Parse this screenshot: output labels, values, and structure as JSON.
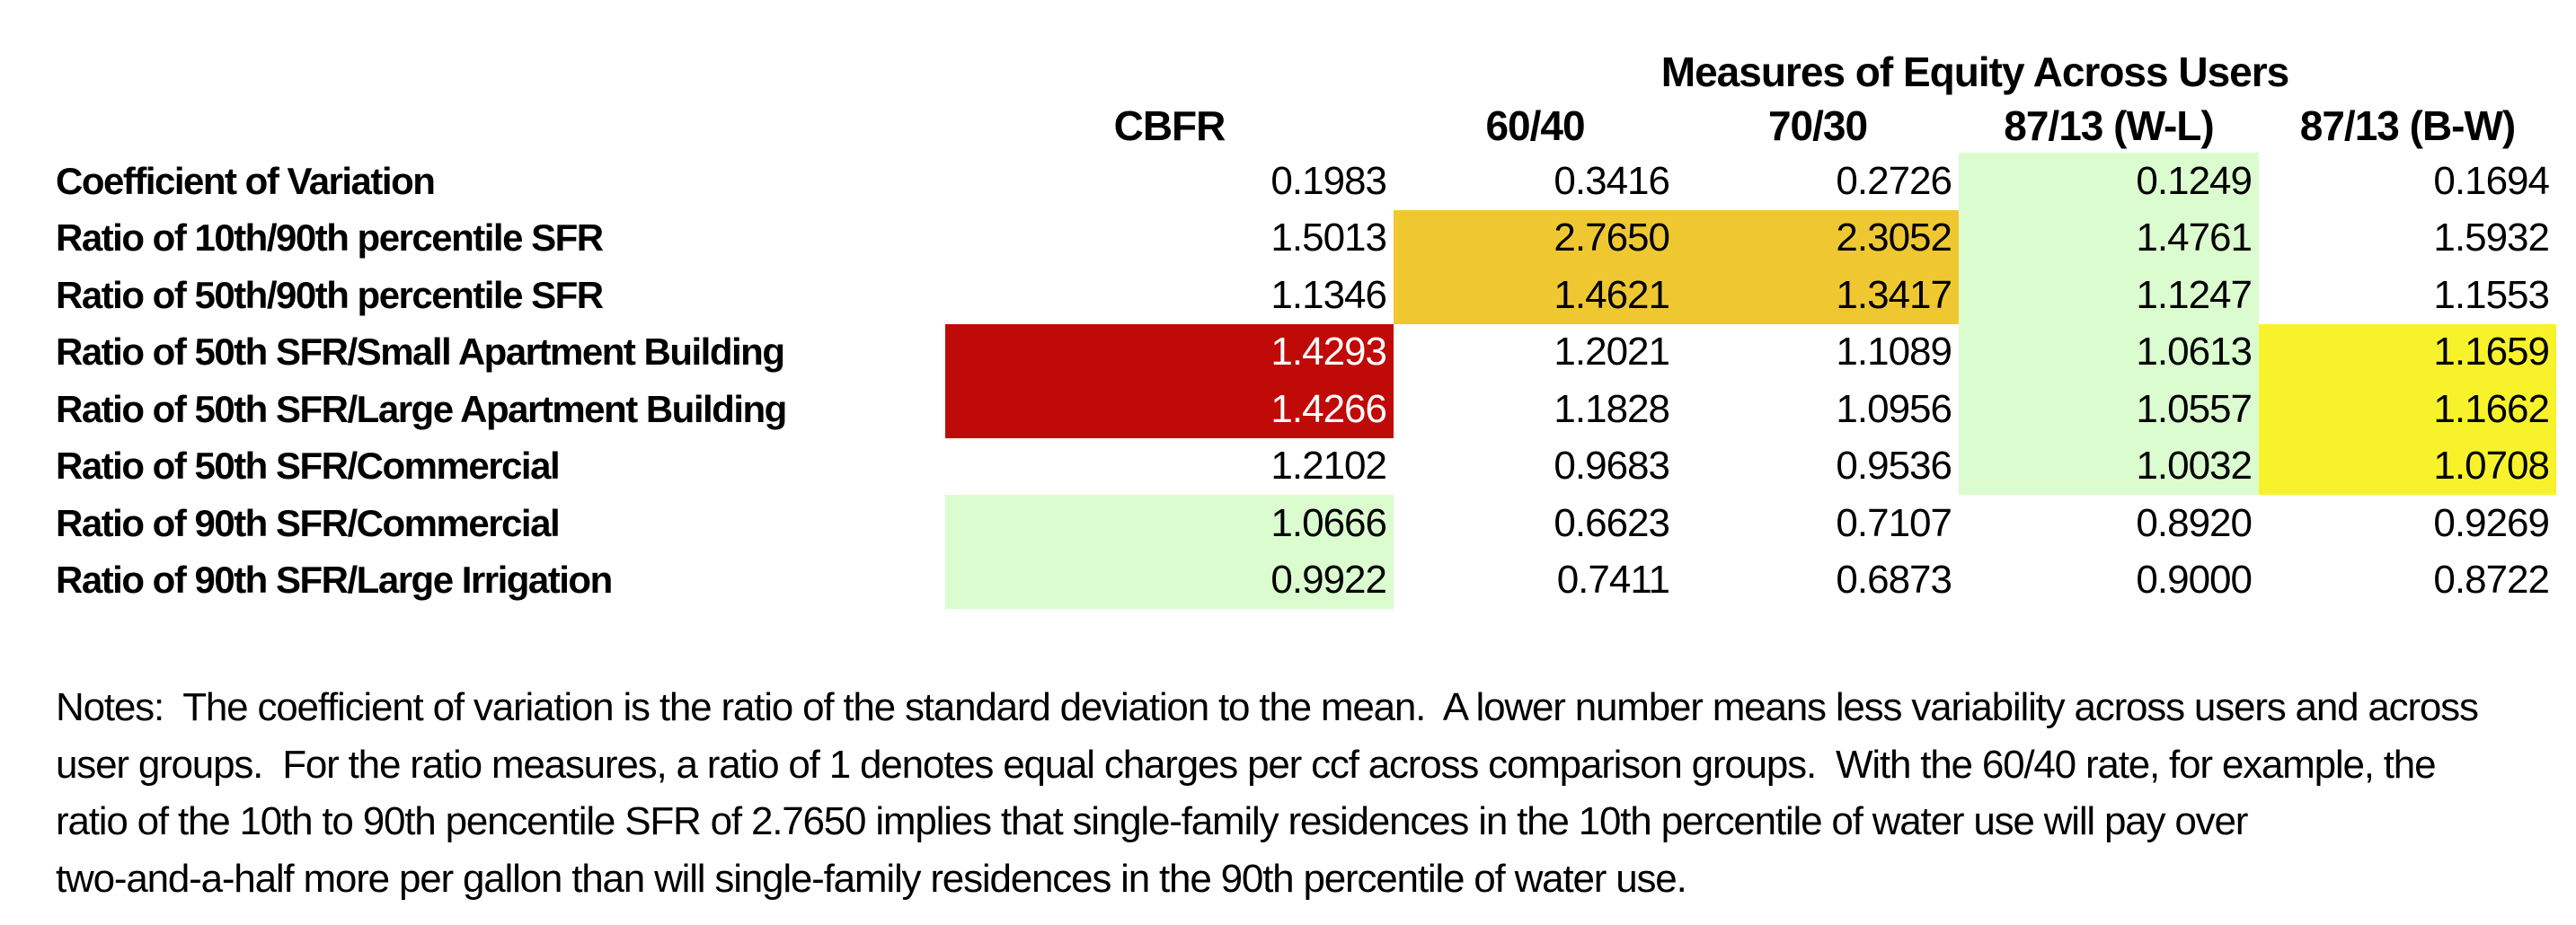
{
  "title": "Measures of Equity Across Users",
  "table": {
    "columns": [
      "CBFR",
      "60/40",
      "70/30",
      "87/13 (W-L)",
      "87/13 (B-W)"
    ],
    "rows": [
      {
        "label": "Coefficient of Variation",
        "values": [
          "0.1983",
          "0.3416",
          "0.2726",
          "0.1249",
          "0.1694"
        ]
      },
      {
        "label": "Ratio of 10th/90th percentile SFR",
        "values": [
          "1.5013",
          "2.7650",
          "2.3052",
          "1.4761",
          "1.5932"
        ]
      },
      {
        "label": "Ratio of 50th/90th percentile SFR",
        "values": [
          "1.1346",
          "1.4621",
          "1.3417",
          "1.1247",
          "1.1553"
        ]
      },
      {
        "label": "Ratio of 50th SFR/Small Apartment Building",
        "values": [
          "1.4293",
          "1.2021",
          "1.1089",
          "1.0613",
          "1.1659"
        ]
      },
      {
        "label": "Ratio of 50th SFR/Large Apartment Building",
        "values": [
          "1.4266",
          "1.1828",
          "1.0956",
          "1.0557",
          "1.1662"
        ]
      },
      {
        "label": "Ratio of 50th SFR/Commercial",
        "values": [
          "1.2102",
          "0.9683",
          "0.9536",
          "1.0032",
          "1.0708"
        ]
      },
      {
        "label": "Ratio of 90th SFR/Commercial",
        "values": [
          "1.0666",
          "0.6623",
          "0.7107",
          "0.8920",
          "0.9269"
        ]
      },
      {
        "label": "Ratio of 90th SFR/Large Irrigation",
        "values": [
          "0.9922",
          "0.7411",
          "0.6873",
          "0.9000",
          "0.8722"
        ]
      }
    ]
  },
  "colors": {
    "highlight_red": "#C00A08",
    "highlight_gold": "#EFC831",
    "highlight_green": "#DBFCCF",
    "highlight_yellow": "#F8F22B"
  },
  "notes": {
    "lines": [
      "Notes:  The coefficient of variation is the ratio of the standard deviation to the mean.  A lower number means less variability across users and across",
      "user groups.  For the ratio measures, a ratio of 1 denotes equal charges per ccf across comparison groups.  With the 60/40 rate, for example, the",
      "ratio of the 10th to 90th pencentile SFR of 2.7650 implies that single-family residences in the 10th percentile of water use will pay over",
      "two-and-a-half more per gallon than will single-family residences in the 90th percentile of water use."
    ]
  }
}
